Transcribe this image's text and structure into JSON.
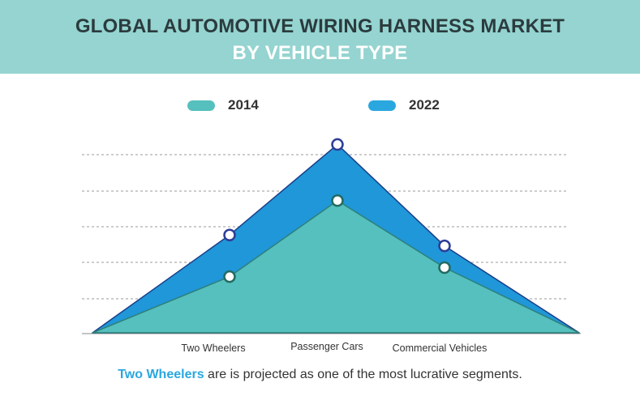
{
  "header": {
    "title_line1": "GLOBAL AUTOMOTIVE WIRING HARNESS MARKET",
    "title_line2": "BY VEHICLE TYPE"
  },
  "colors": {
    "header_bg": "#95d4d0",
    "series_2014": "#55c0bd",
    "series_2022": "#1f97d8",
    "highlight": "#2aa7df"
  },
  "legend": [
    {
      "label": "2014",
      "color": "#55c0bd"
    },
    {
      "label": "2022",
      "color": "#2aa7df"
    }
  ],
  "chart_data": {
    "type": "area",
    "categories": [
      "Two Wheelers",
      "Passenger Cars",
      "Commercial Vehicles"
    ],
    "series": [
      {
        "name": "2014",
        "values": [
          1.55,
          3.65,
          1.8
        ]
      },
      {
        "name": "2022",
        "values": [
          2.7,
          5.2,
          2.4
        ]
      }
    ],
    "ylim": [
      0,
      5.5
    ],
    "grid": true,
    "legend_position": "top"
  },
  "caption": {
    "highlight": "Two Wheelers",
    "rest": " are is projected as one of the most lucrative segments."
  }
}
